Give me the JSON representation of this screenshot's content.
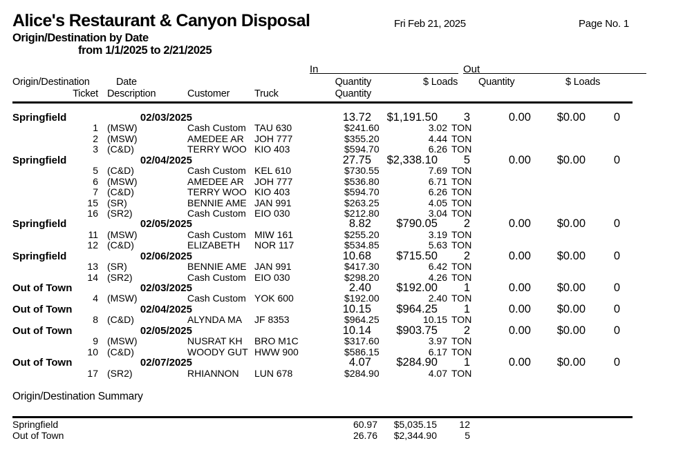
{
  "report": {
    "title": "Alice's Restaurant & Canyon Disposal",
    "run_date": "Fri Feb 21, 2025",
    "page_label": "Page No. 1",
    "subtitle": "Origin/Destination by Date",
    "date_range": "from 1/1/2025 to 2/21/2025"
  },
  "table": {
    "in_label": "In",
    "out_label": "Out",
    "headers": {
      "origin_destination": "Origin/Destination",
      "date": "Date",
      "in_quantity": "Quantity",
      "in_dollar_loads": "$ Loads",
      "out_quantity": "Quantity",
      "out_dollar_loads": "$ Loads",
      "ticket": "Ticket",
      "description": "Description",
      "customer": "Customer",
      "truck": "Truck",
      "detail_quantity": "Quantity"
    },
    "groups": [
      {
        "origin": "Springfield",
        "date": "02/03/2025",
        "in_quantity": "13.72",
        "in_amount": "$1,191.50",
        "in_loads": "3",
        "out_quantity": "0.00",
        "out_amount": "$0.00",
        "out_loads": "0",
        "tickets": [
          {
            "ticket": "1",
            "description": "(MSW)",
            "customer": "Cash Custom",
            "truck": "TAU 630",
            "amount": "$241.60",
            "quantity": "3.02",
            "unit": "TON"
          },
          {
            "ticket": "2",
            "description": "(MSW)",
            "customer": "AMEDEE AR",
            "truck": "JOH 777",
            "amount": "$355.20",
            "quantity": "4.44",
            "unit": "TON"
          },
          {
            "ticket": "3",
            "description": "(C&D)",
            "customer": "TERRY WOO",
            "truck": "KIO 403",
            "amount": "$594.70",
            "quantity": "6.26",
            "unit": "TON"
          }
        ]
      },
      {
        "origin": "Springfield",
        "date": "02/04/2025",
        "in_quantity": "27.75",
        "in_amount": "$2,338.10",
        "in_loads": "5",
        "out_quantity": "0.00",
        "out_amount": "$0.00",
        "out_loads": "0",
        "tickets": [
          {
            "ticket": "5",
            "description": "(C&D)",
            "customer": "Cash Custom",
            "truck": "KEL 610",
            "amount": "$730.55",
            "quantity": "7.69",
            "unit": "TON"
          },
          {
            "ticket": "6",
            "description": "(MSW)",
            "customer": "AMEDEE AR",
            "truck": "JOH 777",
            "amount": "$536.80",
            "quantity": "6.71",
            "unit": "TON"
          },
          {
            "ticket": "7",
            "description": "(C&D)",
            "customer": "TERRY WOO",
            "truck": "KIO 403",
            "amount": "$594.70",
            "quantity": "6.26",
            "unit": "TON"
          },
          {
            "ticket": "15",
            "description": "(SR)",
            "customer": "BENNIE AME",
            "truck": "JAN 991",
            "amount": "$263.25",
            "quantity": "4.05",
            "unit": "TON"
          },
          {
            "ticket": "16",
            "description": "(SR2)",
            "customer": "Cash Custom",
            "truck": "EIO 030",
            "amount": "$212.80",
            "quantity": "3.04",
            "unit": "TON"
          }
        ]
      },
      {
        "origin": "Springfield",
        "date": "02/05/2025",
        "in_quantity": "8.82",
        "in_amount": "$790.05",
        "in_loads": "2",
        "out_quantity": "0.00",
        "out_amount": "$0.00",
        "out_loads": "0",
        "tickets": [
          {
            "ticket": "11",
            "description": "(MSW)",
            "customer": "Cash Custom",
            "truck": "MIW 161",
            "amount": "$255.20",
            "quantity": "3.19",
            "unit": "TON"
          },
          {
            "ticket": "12",
            "description": "(C&D)",
            "customer": "ELIZABETH",
            "truck": "NOR 117",
            "amount": "$534.85",
            "quantity": "5.63",
            "unit": "TON"
          }
        ]
      },
      {
        "origin": "Springfield",
        "date": "02/06/2025",
        "in_quantity": "10.68",
        "in_amount": "$715.50",
        "in_loads": "2",
        "out_quantity": "0.00",
        "out_amount": "$0.00",
        "out_loads": "0",
        "tickets": [
          {
            "ticket": "13",
            "description": "(SR)",
            "customer": "BENNIE AME",
            "truck": "JAN 991",
            "amount": "$417.30",
            "quantity": "6.42",
            "unit": "TON"
          },
          {
            "ticket": "14",
            "description": "(SR2)",
            "customer": "Cash Custom",
            "truck": "EIO 030",
            "amount": "$298.20",
            "quantity": "4.26",
            "unit": "TON"
          }
        ]
      },
      {
        "origin": "Out of Town",
        "date": "02/03/2025",
        "in_quantity": "2.40",
        "in_amount": "$192.00",
        "in_loads": "1",
        "out_quantity": "0.00",
        "out_amount": "$0.00",
        "out_loads": "0",
        "tickets": [
          {
            "ticket": "4",
            "description": "(MSW)",
            "customer": "Cash Custom",
            "truck": "YOK 600",
            "amount": "$192.00",
            "quantity": "2.40",
            "unit": "TON"
          }
        ]
      },
      {
        "origin": "Out of Town",
        "date": "02/04/2025",
        "in_quantity": "10.15",
        "in_amount": "$964.25",
        "in_loads": "1",
        "out_quantity": "0.00",
        "out_amount": "$0.00",
        "out_loads": "0",
        "tickets": [
          {
            "ticket": "8",
            "description": "(C&D)",
            "customer": "ALYNDA MA",
            "truck": "JF 8353",
            "amount": "$964.25",
            "quantity": "10.15",
            "unit": "TON"
          }
        ]
      },
      {
        "origin": "Out of Town",
        "date": "02/05/2025",
        "in_quantity": "10.14",
        "in_amount": "$903.75",
        "in_loads": "2",
        "out_quantity": "0.00",
        "out_amount": "$0.00",
        "out_loads": "0",
        "tickets": [
          {
            "ticket": "9",
            "description": "(MSW)",
            "customer": "NUSRAT KH",
            "truck": "BRO M1C",
            "amount": "$317.60",
            "quantity": "3.97",
            "unit": "TON"
          },
          {
            "ticket": "10",
            "description": "(C&D)",
            "customer": "WOODY GUT",
            "truck": "HWW 900",
            "amount": "$586.15",
            "quantity": "6.17",
            "unit": "TON"
          }
        ]
      },
      {
        "origin": "Out of Town",
        "date": "02/07/2025",
        "in_quantity": "4.07",
        "in_amount": "$284.90",
        "in_loads": "1",
        "out_quantity": "0.00",
        "out_amount": "$0.00",
        "out_loads": "0",
        "tickets": [
          {
            "ticket": "17",
            "description": "(SR2)",
            "customer": "RHIANNON",
            "truck": "LUN 678",
            "amount": "$284.90",
            "quantity": "4.07",
            "unit": "TON"
          }
        ]
      }
    ]
  },
  "summary": {
    "title": "Origin/Destination Summary",
    "rows": [
      {
        "origin": "Springfield",
        "quantity": "60.97",
        "amount": "$5,035.15",
        "loads": "12"
      },
      {
        "origin": "Out of Town",
        "quantity": "26.76",
        "amount": "$2,344.90",
        "loads": "5"
      }
    ]
  }
}
